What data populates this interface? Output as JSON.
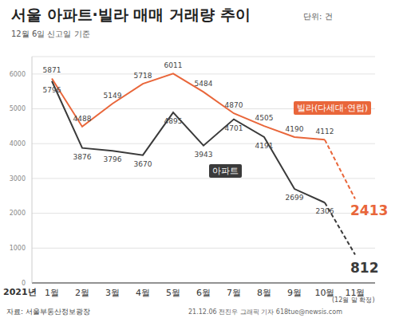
{
  "chart_data": {
    "type": "line",
    "title": "서울 아파트·빌라 매매 거래량 추이",
    "subtitle": "12월 6일 신고일 기준",
    "annotations": {
      "unit": "단위: 건",
      "year": "2021년",
      "note": "(12월 말 확정)",
      "source": "자료: 서울부동산정보광장",
      "credit": "21.12.06 전진우 그래픽 기자 618tue@newsis.com"
    },
    "categories": [
      "1월",
      "2월",
      "3월",
      "4월",
      "5월",
      "6월",
      "7월",
      "8월",
      "9월",
      "10월",
      "11월"
    ],
    "series": [
      {
        "name": "빌라(다세대·연립)",
        "color": "#e9663a",
        "values": [
          5871,
          4488,
          5149,
          5718,
          6011,
          5484,
          4870,
          4505,
          4190,
          4112,
          2413
        ]
      },
      {
        "name": "아파트",
        "color": "#3a3a3a",
        "values": [
          5796,
          3876,
          3796,
          3670,
          4895,
          3943,
          4701,
          4191,
          2699,
          2306,
          812
        ]
      }
    ],
    "ylim": [
      0,
      6500
    ],
    "yticks": [
      0,
      1000,
      2000,
      3000,
      4000,
      5000,
      6000
    ],
    "grid": true,
    "data_labels": true
  }
}
